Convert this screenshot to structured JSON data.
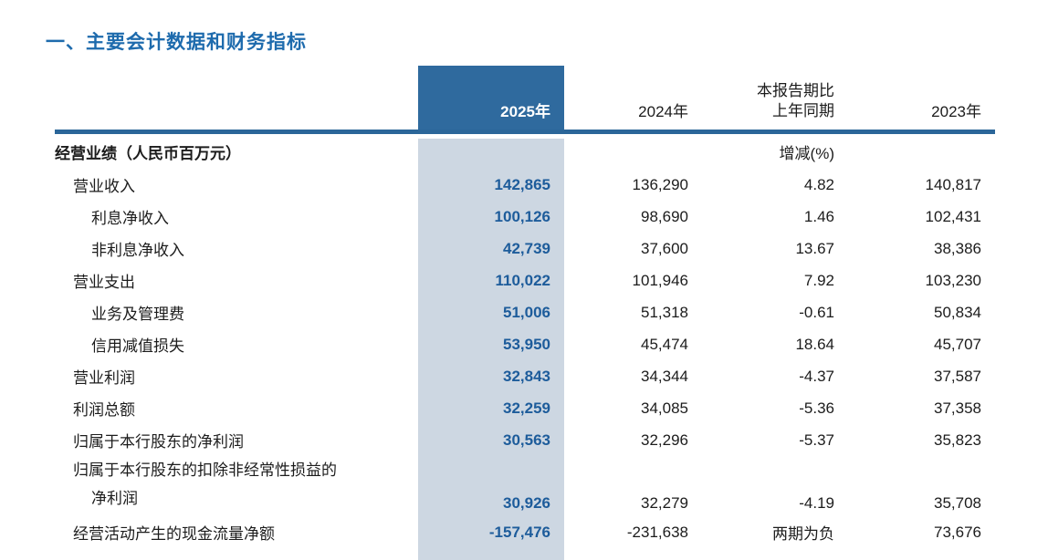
{
  "page": {
    "title": "一、主要会计数据和财务指标"
  },
  "colors": {
    "title_color": "#1e6bad",
    "header_bg": "#2f6a9e",
    "column_bg": "#cdd7e2",
    "accent_text": "#1d5c9b",
    "rule_color": "#2b6699"
  },
  "table": {
    "header": {
      "col_2025": "2025年",
      "col_2024": "2024年",
      "col_change_line1": "本报告期比",
      "col_change_line2": "上年同期",
      "col_2023": "2023年"
    },
    "section": {
      "label": "经营业绩（人民币百万元）",
      "change_unit": "增减(%)"
    },
    "rows": [
      {
        "label": "营业收入",
        "indent": 1,
        "v2025": "142,865",
        "v2024": "136,290",
        "change": "4.82",
        "v2023": "140,817"
      },
      {
        "label": "利息净收入",
        "indent": 2,
        "v2025": "100,126",
        "v2024": "98,690",
        "change": "1.46",
        "v2023": "102,431"
      },
      {
        "label": "非利息净收入",
        "indent": 2,
        "v2025": "42,739",
        "v2024": "37,600",
        "change": "13.67",
        "v2023": "38,386"
      },
      {
        "label": "营业支出",
        "indent": 1,
        "v2025": "110,022",
        "v2024": "101,946",
        "change": "7.92",
        "v2023": "103,230"
      },
      {
        "label": "业务及管理费",
        "indent": 2,
        "v2025": "51,006",
        "v2024": "51,318",
        "change": "-0.61",
        "v2023": "50,834"
      },
      {
        "label": "信用减值损失",
        "indent": 2,
        "v2025": "53,950",
        "v2024": "45,474",
        "change": "18.64",
        "v2023": "45,707"
      },
      {
        "label": "营业利润",
        "indent": 1,
        "v2025": "32,843",
        "v2024": "34,344",
        "change": "-4.37",
        "v2023": "37,587"
      },
      {
        "label": "利润总额",
        "indent": 1,
        "v2025": "32,259",
        "v2024": "34,085",
        "change": "-5.36",
        "v2023": "37,358"
      },
      {
        "label": "归属于本行股东的净利润",
        "indent": 1,
        "v2025": "30,563",
        "v2024": "32,296",
        "change": "-5.37",
        "v2023": "35,823"
      },
      {
        "label_line1": "归属于本行股东的扣除非经常性损益的",
        "label_line2": "净利润",
        "indent": 1,
        "v2025": "30,926",
        "v2024": "32,279",
        "change": "-4.19",
        "v2023": "35,708"
      },
      {
        "label": "经营活动产生的现金流量净额",
        "indent": 1,
        "v2025": "-157,476",
        "v2024": "-231,638",
        "change": "两期为负",
        "v2023": "73,676"
      }
    ]
  }
}
